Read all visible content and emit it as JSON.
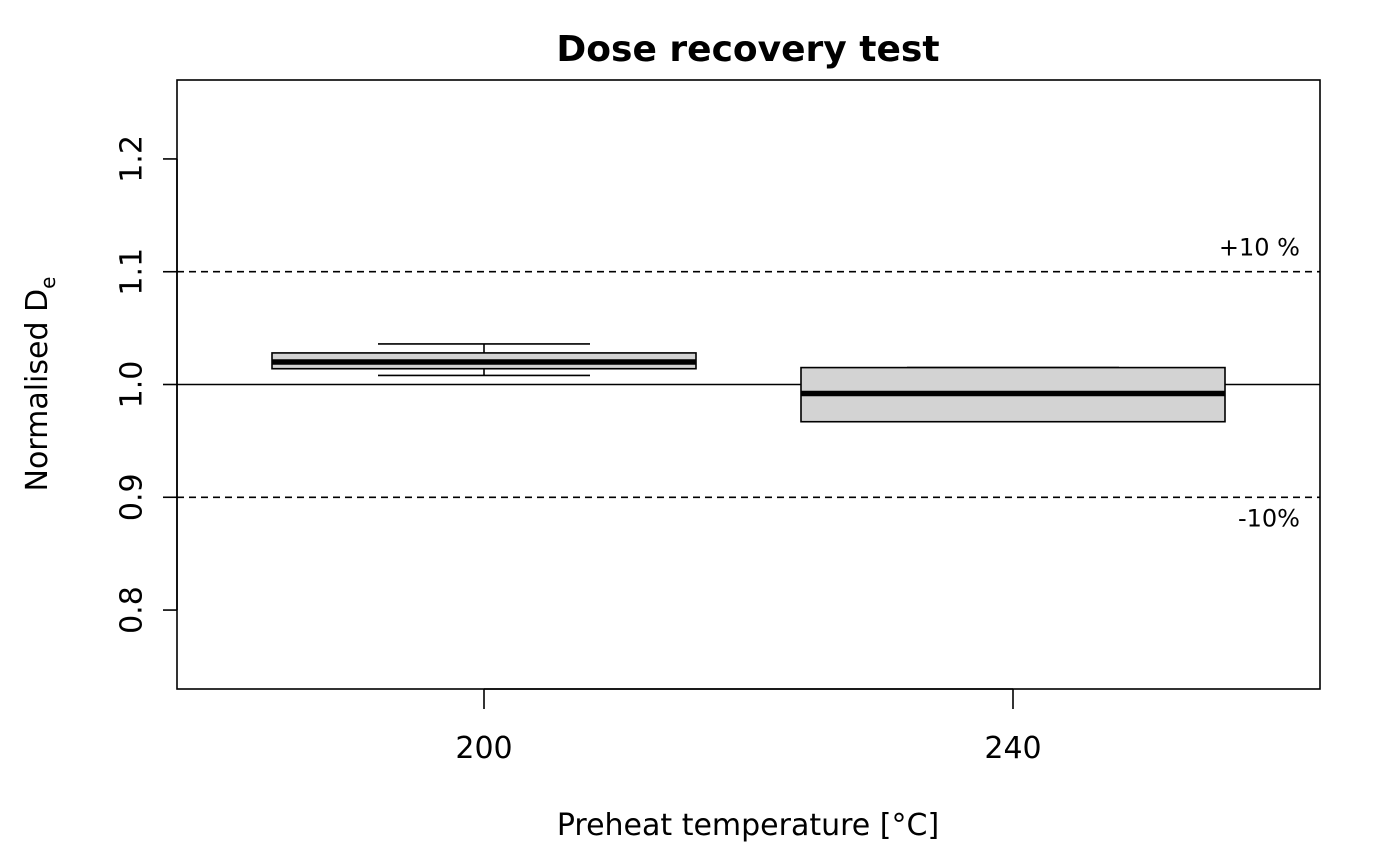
{
  "chart_data": {
    "type": "box",
    "title": "Dose recovery test",
    "xlabel": "Preheat temperature [°C]",
    "ylabel_main": "Normalised D",
    "ylabel_subscript": "e",
    "ylim": [
      0.73,
      1.27
    ],
    "yticks": [
      0.8,
      0.9,
      1.0,
      1.1,
      1.2
    ],
    "ytick_labels": [
      "0.8",
      "0.9",
      "1.0",
      "1.1",
      "1.2"
    ],
    "categories": [
      "200",
      "240"
    ],
    "boxes": [
      {
        "category": "200",
        "whisker_low": 1.008,
        "q1": 1.014,
        "median": 1.02,
        "q3": 1.028,
        "whisker_high": 1.036
      },
      {
        "category": "240",
        "whisker_low": 0.967,
        "q1": 0.967,
        "median": 0.992,
        "q3": 1.015,
        "whisker_high": 1.015
      }
    ],
    "reference_lines": [
      {
        "value": 1.0,
        "style": "solid",
        "label": ""
      },
      {
        "value": 1.1,
        "style": "dashed",
        "label": "+10 %"
      },
      {
        "value": 0.9,
        "style": "dashed",
        "label": "-10%"
      }
    ],
    "box_fill": "#d3d3d3",
    "grid": false,
    "legend": "none"
  }
}
